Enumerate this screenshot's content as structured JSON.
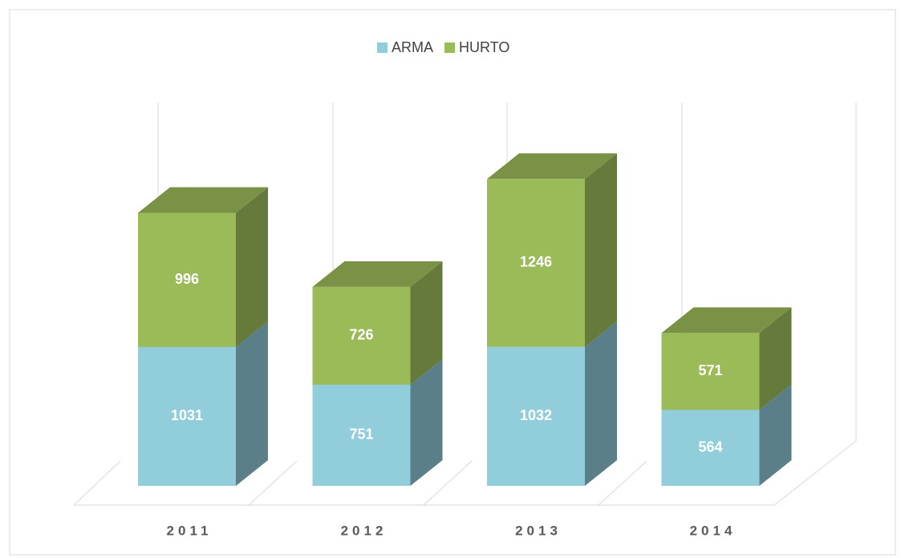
{
  "chart_data": {
    "type": "bar3d_stacked",
    "categories": [
      "2011",
      "2012",
      "2013",
      "2014"
    ],
    "series": [
      {
        "name": "ARMA",
        "color": "#92cddc",
        "values": [
          1031,
          751,
          1032,
          564
        ]
      },
      {
        "name": "HURTO",
        "color": "#9bbb59",
        "values": [
          996,
          726,
          1246,
          571
        ]
      }
    ],
    "legend": "top"
  }
}
